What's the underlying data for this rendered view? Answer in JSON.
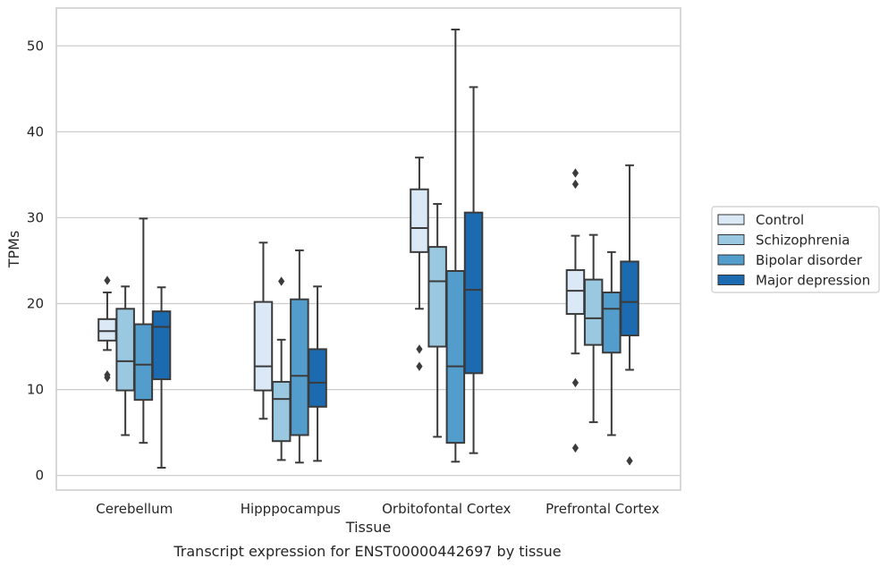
{
  "caption": "Transcript expression for ENST00000442697 by tissue",
  "chart_data": {
    "type": "box",
    "xlabel": "Tissue",
    "ylabel": "TPMs",
    "ylim": [
      -1.7,
      54.4
    ],
    "yticks": [
      0,
      10,
      20,
      30,
      40,
      50
    ],
    "grid": true,
    "legend_position": "right",
    "categories": [
      "Cerebellum",
      "Hipppocampus",
      "Orbitofontal Cortex",
      "Prefrontal Cortex"
    ],
    "series": [
      {
        "name": "Control",
        "color": "#dbe9f6",
        "boxes": [
          {
            "whisker_low": 14.6,
            "q1": 15.7,
            "median": 16.8,
            "q3": 18.2,
            "whisker_high": 21.3,
            "outliers": [
              22.7,
              11.4,
              11.7
            ]
          },
          {
            "whisker_low": 6.6,
            "q1": 9.9,
            "median": 12.7,
            "q3": 20.2,
            "whisker_high": 27.1,
            "outliers": []
          },
          {
            "whisker_low": 19.4,
            "q1": 26.0,
            "median": 28.8,
            "q3": 33.3,
            "whisker_high": 37.0,
            "outliers": [
              14.7,
              12.7
            ]
          },
          {
            "whisker_low": 14.2,
            "q1": 18.8,
            "median": 21.5,
            "q3": 23.9,
            "whisker_high": 27.9,
            "outliers": [
              35.2,
              33.9,
              10.8,
              3.2
            ]
          }
        ]
      },
      {
        "name": "Schizophrenia",
        "color": "#9ac8e0",
        "boxes": [
          {
            "whisker_low": 4.7,
            "q1": 9.9,
            "median": 13.3,
            "q3": 19.4,
            "whisker_high": 22.0,
            "outliers": []
          },
          {
            "whisker_low": 1.8,
            "q1": 4.0,
            "median": 8.9,
            "q3": 10.9,
            "whisker_high": 15.8,
            "outliers": [
              22.6
            ]
          },
          {
            "whisker_low": 4.5,
            "q1": 15.0,
            "median": 22.6,
            "q3": 26.6,
            "whisker_high": 31.6,
            "outliers": []
          },
          {
            "whisker_low": 6.2,
            "q1": 15.2,
            "median": 18.3,
            "q3": 22.8,
            "whisker_high": 28.0,
            "outliers": []
          }
        ]
      },
      {
        "name": "Bipolar disorder",
        "color": "#529dcc",
        "boxes": [
          {
            "whisker_low": 3.8,
            "q1": 8.8,
            "median": 12.9,
            "q3": 17.6,
            "whisker_high": 29.9,
            "outliers": []
          },
          {
            "whisker_low": 1.5,
            "q1": 4.7,
            "median": 11.6,
            "q3": 20.5,
            "whisker_high": 26.2,
            "outliers": []
          },
          {
            "whisker_low": 1.6,
            "q1": 3.8,
            "median": 12.7,
            "q3": 23.8,
            "whisker_high": 51.9,
            "outliers": []
          },
          {
            "whisker_low": 4.7,
            "q1": 14.3,
            "median": 19.4,
            "q3": 21.3,
            "whisker_high": 26.0,
            "outliers": []
          }
        ]
      },
      {
        "name": "Major depression",
        "color": "#1c6aaf",
        "boxes": [
          {
            "whisker_low": 0.9,
            "q1": 11.2,
            "median": 17.3,
            "q3": 19.1,
            "whisker_high": 21.9,
            "outliers": []
          },
          {
            "whisker_low": 1.7,
            "q1": 8.0,
            "median": 10.8,
            "q3": 14.7,
            "whisker_high": 22.0,
            "outliers": []
          },
          {
            "whisker_low": 2.6,
            "q1": 11.9,
            "median": 21.6,
            "q3": 30.6,
            "whisker_high": 45.2,
            "outliers": []
          },
          {
            "whisker_low": 12.3,
            "q1": 16.3,
            "median": 20.2,
            "q3": 24.9,
            "whisker_high": 36.1,
            "outliers": [
              1.7
            ]
          }
        ]
      }
    ]
  }
}
